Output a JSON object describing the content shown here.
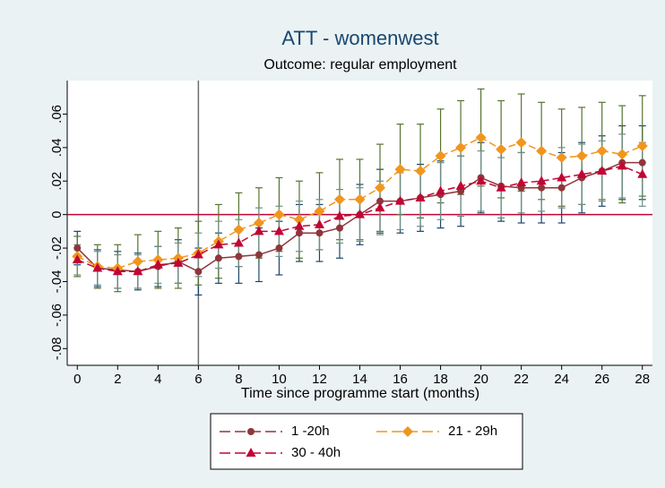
{
  "chart_data": {
    "type": "line",
    "title": "ATT - womenwest",
    "subtitle": "Outcome: regular employment",
    "x_label": "Time since programme start (months)",
    "x": [
      0,
      1,
      2,
      3,
      4,
      5,
      6,
      7,
      8,
      9,
      10,
      11,
      12,
      13,
      14,
      15,
      16,
      17,
      18,
      19,
      20,
      21,
      22,
      23,
      24,
      25,
      26,
      27,
      28
    ],
    "xlim": [
      -0.5,
      28.5
    ],
    "xticks": [
      0,
      2,
      4,
      6,
      8,
      10,
      12,
      14,
      16,
      18,
      20,
      22,
      24,
      26,
      28
    ],
    "ylim": [
      -0.09,
      0.08
    ],
    "yticks": [
      {
        "value": -0.08,
        "label": "-.08"
      },
      {
        "value": -0.06,
        "label": "-.06"
      },
      {
        "value": -0.04,
        "label": "-.04"
      },
      {
        "value": -0.02,
        "label": "-.02"
      },
      0,
      {
        "value": 0.02,
        "label": ".02"
      },
      {
        "value": 0.04,
        "label": ".04"
      },
      {
        "value": 0.06,
        "label": ".06"
      }
    ],
    "reference_x": 6,
    "reference_x_color": "#6e6e6e",
    "reference_y": 0,
    "reference_y_color": "#c10534",
    "series": [
      {
        "name": "1 -20h",
        "color": "#90353b",
        "marker": "circle",
        "ci_color": "#1a476f",
        "values": [
          -0.02,
          -0.032,
          -0.033,
          -0.034,
          -0.031,
          -0.028,
          -0.034,
          -0.026,
          -0.025,
          -0.024,
          -0.02,
          -0.011,
          -0.011,
          -0.008,
          0.0,
          0.008,
          0.008,
          0.01,
          0.012,
          0.014,
          0.022,
          0.017,
          0.016,
          0.016,
          0.016,
          0.022,
          0.026,
          0.031,
          0.031
        ],
        "errors": [
          0.01,
          0.011,
          0.011,
          0.011,
          0.012,
          0.013,
          0.014,
          0.015,
          0.016,
          0.016,
          0.016,
          0.017,
          0.017,
          0.018,
          0.018,
          0.019,
          0.019,
          0.02,
          0.02,
          0.021,
          0.021,
          0.021,
          0.021,
          0.021,
          0.021,
          0.021,
          0.021,
          0.022,
          0.022
        ]
      },
      {
        "name": "21 - 29h",
        "color": "#f0961e",
        "marker": "diamond",
        "ci_color": "#55752f",
        "values": [
          -0.025,
          -0.031,
          -0.032,
          -0.028,
          -0.027,
          -0.026,
          -0.023,
          -0.016,
          -0.009,
          -0.005,
          0.0,
          -0.003,
          0.002,
          0.009,
          0.009,
          0.016,
          0.027,
          0.026,
          0.035,
          0.04,
          0.046,
          0.039,
          0.043,
          0.038,
          0.034,
          0.035,
          0.038,
          0.036,
          0.041
        ],
        "errors": [
          0.012,
          0.013,
          0.014,
          0.016,
          0.017,
          0.018,
          0.019,
          0.022,
          0.022,
          0.021,
          0.022,
          0.023,
          0.023,
          0.024,
          0.024,
          0.026,
          0.027,
          0.028,
          0.028,
          0.028,
          0.029,
          0.029,
          0.029,
          0.029,
          0.029,
          0.029,
          0.029,
          0.029,
          0.03
        ]
      },
      {
        "name": "30 - 40h",
        "color": "#c10534",
        "marker": "triangle",
        "ci_color": "#6e8e84",
        "values": [
          -0.027,
          -0.032,
          -0.034,
          -0.034,
          -0.03,
          -0.029,
          -0.024,
          -0.018,
          -0.017,
          -0.01,
          -0.01,
          -0.007,
          -0.006,
          -0.001,
          0.0,
          0.004,
          0.008,
          0.01,
          0.014,
          0.017,
          0.02,
          0.016,
          0.019,
          0.02,
          0.022,
          0.024,
          0.026,
          0.029,
          0.024
        ],
        "errors": [
          0.009,
          0.01,
          0.01,
          0.01,
          0.011,
          0.012,
          0.013,
          0.014,
          0.014,
          0.014,
          0.015,
          0.015,
          0.015,
          0.016,
          0.016,
          0.016,
          0.017,
          0.017,
          0.017,
          0.018,
          0.018,
          0.018,
          0.018,
          0.018,
          0.018,
          0.018,
          0.018,
          0.019,
          0.019
        ]
      }
    ]
  }
}
